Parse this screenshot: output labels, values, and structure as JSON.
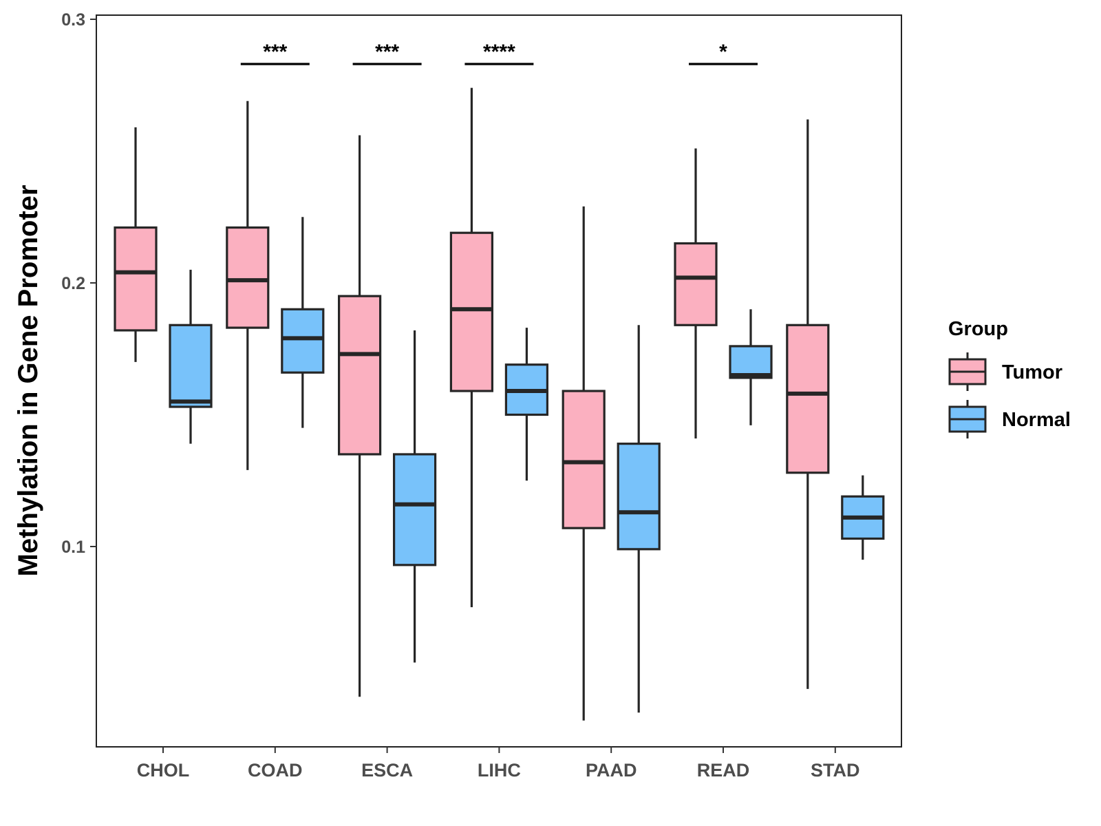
{
  "chart_data": {
    "type": "boxplot",
    "title": "",
    "xlabel": "",
    "ylabel": "Methylation in Gene Promoter",
    "ylim": [
      0.024,
      0.3
    ],
    "yticks": [
      0.1,
      0.2,
      0.3
    ],
    "ytick_labels": [
      "0.1",
      "0.2",
      "0.3"
    ],
    "categories": [
      "CHOL",
      "COAD",
      "ESCA",
      "LIHC",
      "PAAD",
      "READ",
      "STAD"
    ],
    "legend": {
      "title": "Group",
      "position": "right",
      "entries": [
        {
          "name": "Tumor",
          "color": "#fbb0c0"
        },
        {
          "name": "Normal",
          "color": "#78c2fa"
        }
      ]
    },
    "series": [
      {
        "name": "Tumor",
        "color": "#fbb0c0",
        "boxes": [
          {
            "category": "CHOL",
            "whisker_low": 0.17,
            "q1": 0.182,
            "median": 0.204,
            "q3": 0.221,
            "whisker_high": 0.259
          },
          {
            "category": "COAD",
            "whisker_low": 0.129,
            "q1": 0.183,
            "median": 0.201,
            "q3": 0.221,
            "whisker_high": 0.269
          },
          {
            "category": "ESCA",
            "whisker_low": 0.043,
            "q1": 0.135,
            "median": 0.173,
            "q3": 0.195,
            "whisker_high": 0.256
          },
          {
            "category": "LIHC",
            "whisker_low": 0.077,
            "q1": 0.159,
            "median": 0.19,
            "q3": 0.219,
            "whisker_high": 0.274
          },
          {
            "category": "PAAD",
            "whisker_low": 0.034,
            "q1": 0.107,
            "median": 0.132,
            "q3": 0.159,
            "whisker_high": 0.229
          },
          {
            "category": "READ",
            "whisker_low": 0.141,
            "q1": 0.184,
            "median": 0.202,
            "q3": 0.215,
            "whisker_high": 0.251
          },
          {
            "category": "STAD",
            "whisker_low": 0.046,
            "q1": 0.128,
            "median": 0.158,
            "q3": 0.184,
            "whisker_high": 0.262
          }
        ]
      },
      {
        "name": "Normal",
        "color": "#78c2fa",
        "boxes": [
          {
            "category": "CHOL",
            "whisker_low": 0.139,
            "q1": 0.153,
            "median": 0.155,
            "q3": 0.184,
            "whisker_high": 0.205
          },
          {
            "category": "COAD",
            "whisker_low": 0.145,
            "q1": 0.166,
            "median": 0.179,
            "q3": 0.19,
            "whisker_high": 0.225
          },
          {
            "category": "ESCA",
            "whisker_low": 0.056,
            "q1": 0.093,
            "median": 0.116,
            "q3": 0.135,
            "whisker_high": 0.182
          },
          {
            "category": "LIHC",
            "whisker_low": 0.125,
            "q1": 0.15,
            "median": 0.159,
            "q3": 0.169,
            "whisker_high": 0.183
          },
          {
            "category": "PAAD",
            "whisker_low": 0.037,
            "q1": 0.099,
            "median": 0.113,
            "q3": 0.139,
            "whisker_high": 0.184
          },
          {
            "category": "READ",
            "whisker_low": 0.146,
            "q1": 0.164,
            "median": 0.165,
            "q3": 0.176,
            "whisker_high": 0.19
          },
          {
            "category": "STAD",
            "whisker_low": 0.095,
            "q1": 0.103,
            "median": 0.111,
            "q3": 0.119,
            "whisker_high": 0.127
          }
        ]
      }
    ],
    "significance": [
      {
        "category": "COAD",
        "label": "***"
      },
      {
        "category": "ESCA",
        "label": "***"
      },
      {
        "category": "LIHC",
        "label": "****"
      },
      {
        "category": "READ",
        "label": "*"
      }
    ]
  }
}
